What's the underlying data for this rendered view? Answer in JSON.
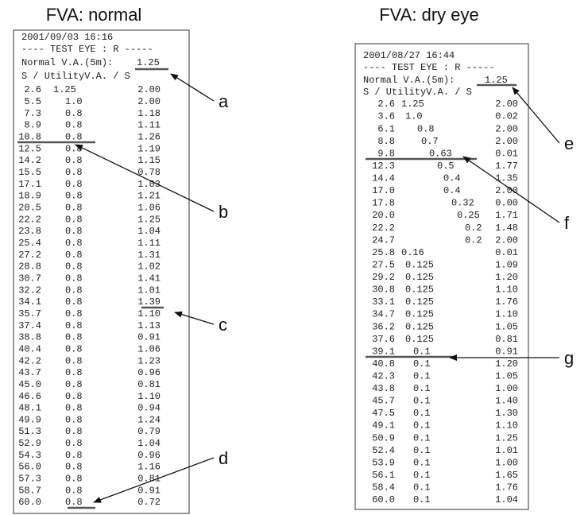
{
  "panels": [
    {
      "title": "FVA: normal",
      "date_line": "2001/09/03      16:16",
      "eye_line": "---- TEST EYE : R -----",
      "normal_va_label": "Normal V.A.(5m):",
      "normal_va": "1.25",
      "header": "S  / UtilityV.A. / S",
      "rows": [
        [
          "2.6",
          "1.25",
          "2.00"
        ],
        [
          "5.5",
          "1.0",
          "2.00"
        ],
        [
          "7.3",
          "0.8",
          "1.18"
        ],
        [
          "8.9",
          "0.8",
          "1.11"
        ],
        [
          "10.8",
          "0.8",
          "1.26"
        ],
        [
          "12.5",
          "0.8",
          "1.19"
        ],
        [
          "14.2",
          "0.8",
          "1.15"
        ],
        [
          "15.5",
          "0.8",
          "0.78"
        ],
        [
          "17.1",
          "0.8",
          "1.03"
        ],
        [
          "18.9",
          "0.8",
          "1.21"
        ],
        [
          "20.5",
          "0.8",
          "1.06"
        ],
        [
          "22.2",
          "0.8",
          "1.25"
        ],
        [
          "23.8",
          "0.8",
          "1.04"
        ],
        [
          "25.4",
          "0.8",
          "1.11"
        ],
        [
          "27.2",
          "0.8",
          "1.31"
        ],
        [
          "28.8",
          "0.8",
          "1.02"
        ],
        [
          "30.7",
          "0.8",
          "1.41"
        ],
        [
          "32.2",
          "0.8",
          "1.01"
        ],
        [
          "34.1",
          "0.8",
          "1.39"
        ],
        [
          "35.7",
          "0.8",
          "1.10"
        ],
        [
          "37.4",
          "0.8",
          "1.13"
        ],
        [
          "38.8",
          "0.8",
          "0.91"
        ],
        [
          "40.4",
          "0.8",
          "1.06"
        ],
        [
          "42.2",
          "0.8",
          "1.23"
        ],
        [
          "43.7",
          "0.8",
          "0.96"
        ],
        [
          "45.0",
          "0.8",
          "0.81"
        ],
        [
          "46.6",
          "0.8",
          "1.10"
        ],
        [
          "48.1",
          "0.8",
          "0.94"
        ],
        [
          "49.9",
          "0.8",
          "1.24"
        ],
        [
          "51.3",
          "0.8",
          "0.79"
        ],
        [
          "52.9",
          "0.8",
          "1.04"
        ],
        [
          "54.3",
          "0.8",
          "0.96"
        ],
        [
          "56.0",
          "0.8",
          "1.16"
        ],
        [
          "57.3",
          "0.8",
          "0.81"
        ],
        [
          "58.7",
          "0.8",
          "0.91"
        ],
        [
          "60.0",
          "0.8",
          "0.72"
        ]
      ],
      "labels": [
        "a",
        "b",
        "c",
        "d"
      ]
    },
    {
      "title": "FVA: dry eye",
      "date_line": "2001/08/27      16:44",
      "eye_line": "---- TEST EYE : R -----",
      "normal_va_label": "Normal V.A.(5m):",
      "normal_va": "1.25",
      "header": "S  / UtilityV.A. / S",
      "rows": [
        [
          "2.6",
          "1.25",
          "2.00"
        ],
        [
          "3.6",
          "1.0",
          "0.02"
        ],
        [
          "6.1",
          "0.8",
          "2.00"
        ],
        [
          "8.8",
          "0.7",
          "2.00"
        ],
        [
          "9.8",
          "0.63",
          "0.01"
        ],
        [
          "12.3",
          "0.5",
          "1.77"
        ],
        [
          "14.4",
          "0.4",
          "1.35"
        ],
        [
          "17.0",
          "0.4",
          "2.00"
        ],
        [
          "17.8",
          "0.32",
          "0.00"
        ],
        [
          "20.0",
          "0.25",
          "1.71"
        ],
        [
          "22.2",
          "0.2",
          "1.48"
        ],
        [
          "24.7",
          "0.2",
          "2.00"
        ],
        [
          "25.8",
          "0.16",
          "0.01"
        ],
        [
          "27.5",
          "0.125",
          "1.09"
        ],
        [
          "29.2",
          "0.125",
          "1.20"
        ],
        [
          "30.8",
          "0.125",
          "1.10"
        ],
        [
          "33.1",
          "0.125",
          "1.76"
        ],
        [
          "34.7",
          "0.125",
          "1.10"
        ],
        [
          "36.2",
          "0.125",
          "1.05"
        ],
        [
          "37.6",
          "0.125",
          "0.81"
        ],
        [
          "39.1",
          "0.1",
          "0.91"
        ],
        [
          "40.8",
          "0.1",
          "1.20"
        ],
        [
          "42.3",
          "0.1",
          "1.05"
        ],
        [
          "43.8",
          "0.1",
          "1.00"
        ],
        [
          "45.7",
          "0.1",
          "1.40"
        ],
        [
          "47.5",
          "0.1",
          "1.30"
        ],
        [
          "49.1",
          "0.1",
          "1.10"
        ],
        [
          "50.9",
          "0.1",
          "1.25"
        ],
        [
          "52.4",
          "0.1",
          "1.01"
        ],
        [
          "53.9",
          "0.1",
          "1.00"
        ],
        [
          "56.1",
          "0.1",
          "1.65"
        ],
        [
          "58.4",
          "0.1",
          "1.76"
        ],
        [
          "60.0",
          "0.1",
          "1.04"
        ]
      ],
      "labels": [
        "e",
        "f",
        "g"
      ]
    }
  ]
}
